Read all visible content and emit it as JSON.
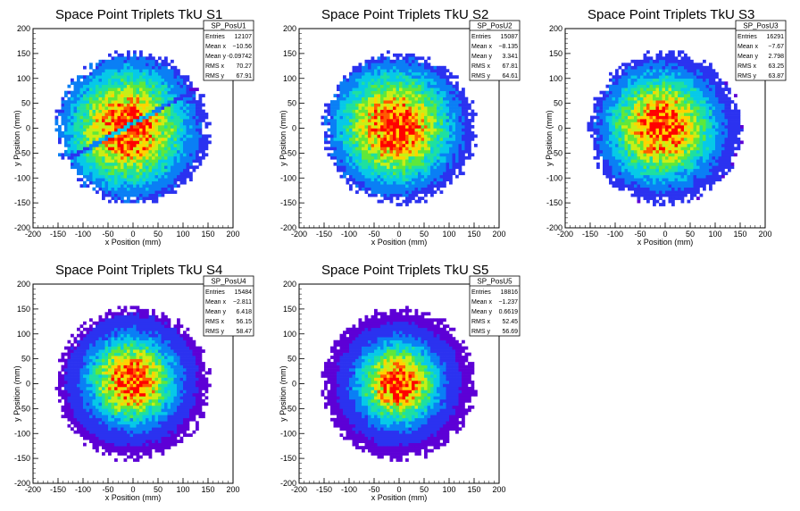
{
  "chart_data": [
    {
      "type": "heatmap",
      "title": "Space Point Triplets TkU S1",
      "xlabel": "x Position (mm)",
      "ylabel": "y Position (mm)",
      "xlim": [
        -200,
        200
      ],
      "ylim": [
        -200,
        200
      ],
      "xticks": [
        "-200",
        "-150",
        "-100",
        "-50",
        "0",
        "50",
        "100",
        "150",
        "200"
      ],
      "yticks": [
        "-200",
        "-150",
        "-100",
        "-50",
        "0",
        "50",
        "100",
        "150",
        "200"
      ],
      "distribution": {
        "radius": 150,
        "center_x": -10.56,
        "center_y": -0.09742,
        "sigma": 75,
        "gap_line": true
      },
      "stats": {
        "name": "SP_PosU1",
        "rows": [
          {
            "label": "Entries",
            "value": "12107"
          },
          {
            "label": "Mean x",
            "value": "−10.56"
          },
          {
            "label": "Mean y",
            "value": "-0.09742"
          },
          {
            "label": "RMS x",
            "value": "70.27"
          },
          {
            "label": "RMS y",
            "value": "67.91"
          }
        ]
      }
    },
    {
      "type": "heatmap",
      "title": "Space Point Triplets TkU S2",
      "xlabel": "x Position (mm)",
      "ylabel": "y Position (mm)",
      "xlim": [
        -200,
        200
      ],
      "ylim": [
        -200,
        200
      ],
      "xticks": [
        "-200",
        "-150",
        "-100",
        "-50",
        "0",
        "50",
        "100",
        "150",
        "200"
      ],
      "yticks": [
        "-200",
        "-150",
        "-100",
        "-50",
        "0",
        "50",
        "100",
        "150",
        "200"
      ],
      "distribution": {
        "radius": 150,
        "center_x": -8.135,
        "center_y": 3.341,
        "sigma": 72,
        "gap_line": false
      },
      "stats": {
        "name": "SP_PosU2",
        "rows": [
          {
            "label": "Entries",
            "value": "15087"
          },
          {
            "label": "Mean x",
            "value": "−8.135"
          },
          {
            "label": "Mean y",
            "value": "3.341"
          },
          {
            "label": "RMS x",
            "value": "67.81"
          },
          {
            "label": "RMS y",
            "value": "64.61"
          }
        ]
      }
    },
    {
      "type": "heatmap",
      "title": "Space Point Triplets TkU S3",
      "xlabel": "x Position (mm)",
      "ylabel": "y Position (mm)",
      "xlim": [
        -200,
        200
      ],
      "ylim": [
        -200,
        200
      ],
      "xticks": [
        "-200",
        "-150",
        "-100",
        "-50",
        "0",
        "50",
        "100",
        "150",
        "200"
      ],
      "yticks": [
        "-200",
        "-150",
        "-100",
        "-50",
        "0",
        "50",
        "100",
        "150",
        "200"
      ],
      "distribution": {
        "radius": 150,
        "center_x": -7.67,
        "center_y": 2.798,
        "sigma": 68,
        "gap_line": false
      },
      "stats": {
        "name": "SP_PosU3",
        "rows": [
          {
            "label": "Entries",
            "value": "16291"
          },
          {
            "label": "Mean x",
            "value": "−7.67"
          },
          {
            "label": "Mean y",
            "value": "2.798"
          },
          {
            "label": "RMS x",
            "value": "63.25"
          },
          {
            "label": "RMS y",
            "value": "63.87"
          }
        ]
      }
    },
    {
      "type": "heatmap",
      "title": "Space Point Triplets TkU S4",
      "xlabel": "x Position (mm)",
      "ylabel": "y Position (mm)",
      "xlim": [
        -200,
        200
      ],
      "ylim": [
        -200,
        200
      ],
      "xticks": [
        "-200",
        "-150",
        "-100",
        "-50",
        "0",
        "50",
        "100",
        "150",
        "200"
      ],
      "yticks": [
        "-200",
        "-150",
        "-100",
        "-50",
        "0",
        "50",
        "100",
        "150",
        "200"
      ],
      "distribution": {
        "radius": 150,
        "center_x": -2.811,
        "center_y": 6.418,
        "sigma": 55,
        "gap_line": false
      },
      "stats": {
        "name": "SP_PosU4",
        "rows": [
          {
            "label": "Entries",
            "value": "15484"
          },
          {
            "label": "Mean x",
            "value": "−2.811"
          },
          {
            "label": "Mean y",
            "value": "6.418"
          },
          {
            "label": "RMS x",
            "value": "56.15"
          },
          {
            "label": "RMS y",
            "value": "58.47"
          }
        ]
      }
    },
    {
      "type": "heatmap",
      "title": "Space Point Triplets TkU S5",
      "xlabel": "x Position (mm)",
      "ylabel": "y Position (mm)",
      "xlim": [
        -200,
        200
      ],
      "ylim": [
        -200,
        200
      ],
      "xticks": [
        "-200",
        "-150",
        "-100",
        "-50",
        "0",
        "50",
        "100",
        "150",
        "200"
      ],
      "yticks": [
        "-200",
        "-150",
        "-100",
        "-50",
        "0",
        "50",
        "100",
        "150",
        "200"
      ],
      "distribution": {
        "radius": 150,
        "center_x": -1.237,
        "center_y": 0.6619,
        "sigma": 52,
        "gap_line": false
      },
      "stats": {
        "name": "SP_PosU5",
        "rows": [
          {
            "label": "Entries",
            "value": "18816"
          },
          {
            "label": "Mean x",
            "value": "−1.237"
          },
          {
            "label": "Mean y",
            "value": "0.6619"
          },
          {
            "label": "RMS x",
            "value": "52.45"
          },
          {
            "label": "RMS y",
            "value": "56.69"
          }
        ]
      }
    }
  ],
  "colors": {
    "palette": [
      "#ffffff",
      "#5d00d6",
      "#2b32f0",
      "#0a7ff5",
      "#06c9e8",
      "#1ee0a0",
      "#5fe83a",
      "#c8ef16",
      "#ffd400",
      "#ff5a00",
      "#ff0000"
    ]
  }
}
